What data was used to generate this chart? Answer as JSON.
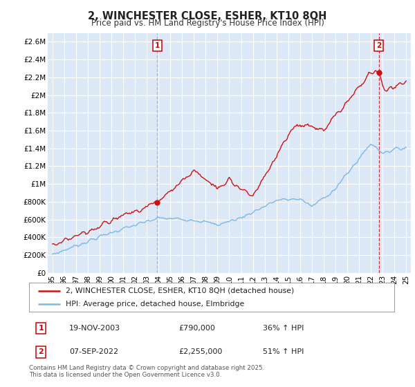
{
  "title": "2, WINCHESTER CLOSE, ESHER, KT10 8QH",
  "subtitle": "Price paid vs. HM Land Registry's House Price Index (HPI)",
  "legend_line1": "2, WINCHESTER CLOSE, ESHER, KT10 8QH (detached house)",
  "legend_line2": "HPI: Average price, detached house, Elmbridge",
  "sale1_date": "19-NOV-2003",
  "sale1_price": "£790,000",
  "sale1_hpi": "36% ↑ HPI",
  "sale2_date": "07-SEP-2022",
  "sale2_price": "£2,255,000",
  "sale2_hpi": "51% ↑ HPI",
  "footer": "Contains HM Land Registry data © Crown copyright and database right 2025.\nThis data is licensed under the Open Government Licence v3.0.",
  "hpi_color": "#7ab8e8",
  "price_color": "#cc1111",
  "background_color": "#dce8f5",
  "grid_color": "#ffffff",
  "ylim": [
    0,
    2700000
  ],
  "yticks": [
    0,
    200000,
    400000,
    600000,
    800000,
    1000000,
    1200000,
    1400000,
    1600000,
    1800000,
    2000000,
    2200000,
    2400000,
    2600000
  ],
  "ytick_labels": [
    "£0",
    "£200K",
    "£400K",
    "£600K",
    "£800K",
    "£1M",
    "£1.2M",
    "£1.4M",
    "£1.6M",
    "£1.8M",
    "£2M",
    "£2.2M",
    "£2.4M",
    "£2.6M"
  ],
  "xlim_start": 1994.6,
  "xlim_end": 2025.4,
  "xticks": [
    1995,
    1996,
    1997,
    1998,
    1999,
    2000,
    2001,
    2002,
    2003,
    2004,
    2005,
    2006,
    2007,
    2008,
    2009,
    2010,
    2011,
    2012,
    2013,
    2014,
    2015,
    2016,
    2017,
    2018,
    2019,
    2020,
    2021,
    2022,
    2023,
    2024,
    2025
  ],
  "sale1_x": 2003.88,
  "sale1_y": 790000,
  "sale2_x": 2022.68,
  "sale2_y": 2255000,
  "vline1_x": 2003.88,
  "vline2_x": 2022.68
}
